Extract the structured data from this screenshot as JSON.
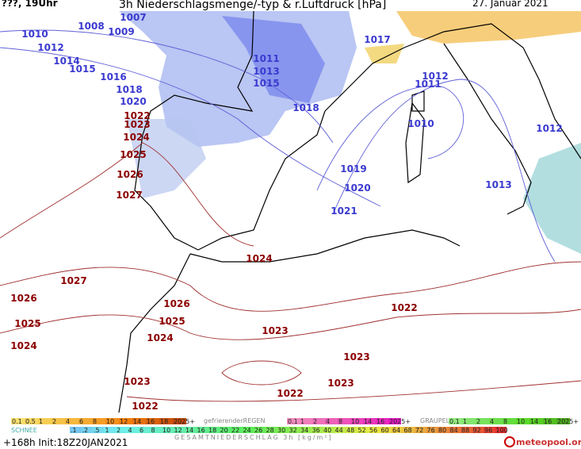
{
  "header": {
    "time": "???, 19Uhr",
    "title": "3h Niederschlagsmenge/-typ & r.Luftdruck [hPa]",
    "date": "27. Januar 2021"
  },
  "isobar_labels": [
    {
      "text": "1007",
      "color": "#3a3ad0"
    },
    {
      "text": "1008",
      "color": "#3a3ad0"
    },
    {
      "text": "1009",
      "color": "#3a3ad0"
    },
    {
      "text": "1010",
      "color": "#3a3ad0"
    },
    {
      "text": "1012",
      "color": "#3a3ad0"
    },
    {
      "text": "1014",
      "color": "#3a3ad0"
    },
    {
      "text": "1015",
      "color": "#3a3ad0"
    },
    {
      "text": "1016",
      "color": "#3a3ad0"
    },
    {
      "text": "1018",
      "color": "#3a3ad0"
    },
    {
      "text": "1020",
      "color": "#3a3ad0"
    },
    {
      "text": "1011",
      "color": "#3a3ad0"
    },
    {
      "text": "1013",
      "color": "#3a3ad0"
    },
    {
      "text": "1015",
      "color": "#3a3ad0"
    },
    {
      "text": "1018",
      "color": "#3a3ad0"
    },
    {
      "text": "1017",
      "color": "#3a3ad0"
    },
    {
      "text": "1012",
      "color": "#3a3ad0"
    },
    {
      "text": "1011",
      "color": "#3a3ad0"
    },
    {
      "text": "1010",
      "color": "#3a3ad0"
    },
    {
      "text": "1019",
      "color": "#3a3ad0"
    },
    {
      "text": "1020",
      "color": "#3a3ad0"
    },
    {
      "text": "1021",
      "color": "#3a3ad0"
    },
    {
      "text": "1013",
      "color": "#3a3ad0"
    },
    {
      "text": "1012",
      "color": "#3a3ad0"
    },
    {
      "text": "1022",
      "color": "#8b0000"
    },
    {
      "text": "1023",
      "color": "#8b0000"
    },
    {
      "text": "1024",
      "color": "#8b0000"
    },
    {
      "text": "1025",
      "color": "#8b0000"
    },
    {
      "text": "1026",
      "color": "#8b0000"
    },
    {
      "text": "1027",
      "color": "#8b0000"
    },
    {
      "text": "1024",
      "color": "#8b0000"
    },
    {
      "text": "1027",
      "color": "#8b0000"
    },
    {
      "text": "1026",
      "color": "#8b0000"
    },
    {
      "text": "1026",
      "color": "#8b0000"
    },
    {
      "text": "1025",
      "color": "#8b0000"
    },
    {
      "text": "1025",
      "color": "#8b0000"
    },
    {
      "text": "1024",
      "color": "#8b0000"
    },
    {
      "text": "1024",
      "color": "#8b0000"
    },
    {
      "text": "1023",
      "color": "#8b0000"
    },
    {
      "text": "1022",
      "color": "#8b0000"
    },
    {
      "text": "1023",
      "color": "#8b0000"
    },
    {
      "text": "1023",
      "color": "#8b0000"
    },
    {
      "text": "1023",
      "color": "#8b0000"
    },
    {
      "text": "1022",
      "color": "#8b0000"
    },
    {
      "text": "1022",
      "color": "#8b0000"
    }
  ],
  "legend": {
    "snow_label": "SCHNEE",
    "snow_scale": [
      "0.1",
      "0.5",
      "1",
      "2",
      "4",
      "6",
      "8",
      "10",
      "12",
      "14",
      "16",
      "18",
      "2025+"
    ],
    "freezing_rain_label": "gefrierenderREGEN",
    "freezing_rain_scale": [
      "0.1",
      "1",
      "2",
      "4",
      "8",
      "10",
      "14",
      "16",
      "2025+"
    ],
    "graupel_label": "GRAUPEL",
    "graupel_scale": [
      "0.1",
      "1",
      "2",
      "4",
      "8",
      "10",
      "14",
      "16",
      "2025+"
    ],
    "rain_scale": [
      ".1",
      ".2",
      ".5",
      "1",
      "2",
      "4",
      "6",
      "8",
      "10",
      "12",
      "14",
      "16",
      "18",
      "20",
      "22",
      "24",
      "26",
      "28",
      "30",
      "32",
      "34",
      "36",
      "40",
      "44",
      "48",
      "52",
      "56",
      "60",
      "64",
      "68",
      "72",
      "76",
      "80",
      "84",
      "88",
      "92",
      "96",
      "100"
    ],
    "total_label": "GESAMTNIEDERSCHLAG 3h [kg/m²]"
  },
  "footer": {
    "run": "+168h Init:18Z20JAN2021",
    "brand": "meteopool.org"
  }
}
